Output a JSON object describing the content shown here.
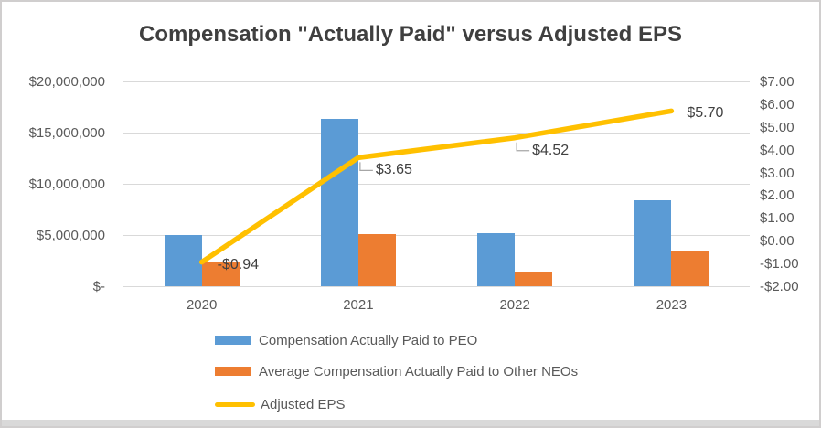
{
  "title": "Compensation \"Actually Paid\" versus Adjusted EPS",
  "colors": {
    "peo_bar": "#5B9BD5",
    "neo_bar": "#ED7D31",
    "eps_line": "#FFC000",
    "gridline": "#d9d9d9",
    "axis_text": "#595959",
    "title_text": "#3f3f3f",
    "leader_line": "#a6a6a6"
  },
  "chart_data": {
    "type": "bar-line-combo",
    "title": "Compensation \"Actually Paid\" versus Adjusted EPS",
    "categories": [
      "2020",
      "2021",
      "2022",
      "2023"
    ],
    "bar_series": [
      {
        "name": "Compensation Actually Paid to PEO",
        "color": "#5B9BD5",
        "axis": "left",
        "values": [
          5000000,
          16300000,
          5200000,
          8400000
        ]
      },
      {
        "name": "Average Compensation Actually Paid to Other NEOs",
        "color": "#ED7D31",
        "axis": "left",
        "values": [
          2400000,
          5100000,
          1400000,
          3400000
        ]
      }
    ],
    "line_series": {
      "name": "Adjusted EPS",
      "color": "#FFC000",
      "axis": "right",
      "values": [
        -0.94,
        3.65,
        4.52,
        5.7
      ],
      "point_labels": [
        "-$0.94",
        "$3.65",
        "$4.52",
        "$5.70"
      ]
    },
    "left_axis": {
      "min": 0,
      "max": 20000000,
      "tick_labels": [
        "$20,000,000",
        "$15,000,000",
        "$10,000,000",
        "$5,000,000",
        "$-"
      ]
    },
    "right_axis": {
      "min": -2,
      "max": 7,
      "tick_labels": [
        "$7.00",
        "$6.00",
        "$5.00",
        "$4.00",
        "$3.00",
        "$2.00",
        "$1.00",
        "$0.00",
        "-$1.00",
        "-$2.00"
      ]
    },
    "grid": "horizontal-major",
    "legend_position": "bottom-left-indented",
    "legend": [
      {
        "label": "Compensation Actually Paid to PEO",
        "swatch": "rect",
        "color": "#5B9BD5"
      },
      {
        "label": "Average Compensation Actually Paid to Other NEOs",
        "swatch": "rect",
        "color": "#ED7D31"
      },
      {
        "label": "Adjusted EPS",
        "swatch": "line",
        "color": "#FFC000"
      }
    ]
  }
}
